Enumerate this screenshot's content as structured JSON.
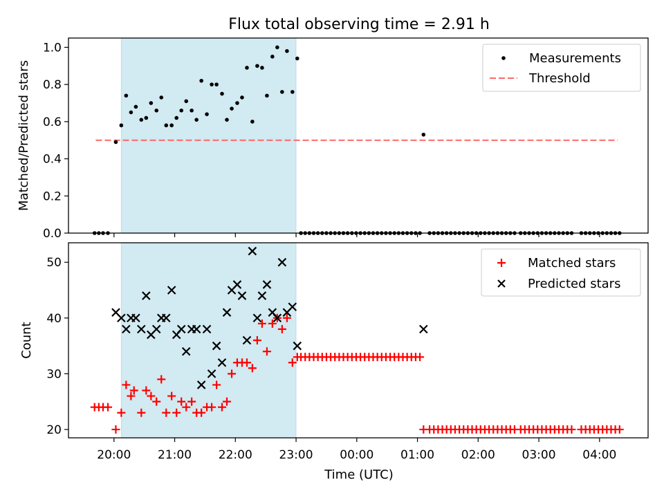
{
  "title": "Flux total observing time = 2.91 h",
  "x_tick_labels": [
    "20:00",
    "21:00",
    "22:00",
    "23:00",
    "00:00",
    "01:00",
    "02:00",
    "03:00",
    "04:00"
  ],
  "xlabel": "Time (UTC)",
  "colors": {
    "shade": "#add8e6",
    "threshold": "#ff6666",
    "measurement": "#000000",
    "matched": "#ff0000",
    "predicted": "#000000"
  },
  "chart_data": [
    {
      "type": "scatter",
      "panel": "top",
      "title": "Flux total observing time = 2.91 h",
      "ylabel": "Matched/Predicted stars",
      "x_unit": "hours since 20:00 UTC",
      "xlim": [
        -0.75,
        8.8
      ],
      "ylim": [
        0,
        1.05
      ],
      "yticks": [
        0.0,
        0.2,
        0.4,
        0.6,
        0.8,
        1.0
      ],
      "ytick_labels": [
        "0.0",
        "0.2",
        "0.4",
        "0.6",
        "0.8",
        "1.0"
      ],
      "shaded_interval": [
        0.12,
        3.0
      ],
      "threshold": {
        "name": "Threshold",
        "x": [
          -0.3,
          8.3
        ],
        "y": 0.5
      },
      "legend": {
        "position": "top-right",
        "entries": [
          "Measurements",
          "Threshold"
        ]
      },
      "series": [
        {
          "name": "Measurements",
          "points": [
            [
              -0.32,
              0
            ],
            [
              -0.25,
              0
            ],
            [
              -0.18,
              0
            ],
            [
              -0.1,
              0
            ],
            [
              0.03,
              0.49
            ],
            [
              0.12,
              0.58
            ],
            [
              0.2,
              0.74
            ],
            [
              0.28,
              0.65
            ],
            [
              0.36,
              0.68
            ],
            [
              0.45,
              0.61
            ],
            [
              0.53,
              0.62
            ],
            [
              0.61,
              0.7
            ],
            [
              0.7,
              0.66
            ],
            [
              0.78,
              0.73
            ],
            [
              0.86,
              0.58
            ],
            [
              0.95,
              0.58
            ],
            [
              1.03,
              0.62
            ],
            [
              1.11,
              0.66
            ],
            [
              1.19,
              0.71
            ],
            [
              1.28,
              0.66
            ],
            [
              1.36,
              0.61
            ],
            [
              1.44,
              0.82
            ],
            [
              1.53,
              0.64
            ],
            [
              1.61,
              0.8
            ],
            [
              1.69,
              0.8
            ],
            [
              1.78,
              0.75
            ],
            [
              1.86,
              0.61
            ],
            [
              1.94,
              0.67
            ],
            [
              2.03,
              0.7
            ],
            [
              2.11,
              0.73
            ],
            [
              2.19,
              0.89
            ],
            [
              2.28,
              0.6
            ],
            [
              2.36,
              0.9
            ],
            [
              2.44,
              0.89
            ],
            [
              2.52,
              0.74
            ],
            [
              2.61,
              0.95
            ],
            [
              2.69,
              1.0
            ],
            [
              2.77,
              0.76
            ],
            [
              2.85,
              0.98
            ],
            [
              2.94,
              0.76
            ],
            [
              3.02,
              0.94
            ],
            [
              3.08,
              0
            ],
            [
              3.15,
              0
            ],
            [
              3.22,
              0
            ],
            [
              3.29,
              0
            ],
            [
              3.36,
              0
            ],
            [
              3.43,
              0
            ],
            [
              3.5,
              0
            ],
            [
              3.57,
              0
            ],
            [
              3.64,
              0
            ],
            [
              3.71,
              0
            ],
            [
              3.78,
              0
            ],
            [
              3.85,
              0
            ],
            [
              3.92,
              0
            ],
            [
              3.99,
              0
            ],
            [
              4.06,
              0
            ],
            [
              4.13,
              0
            ],
            [
              4.2,
              0
            ],
            [
              4.27,
              0
            ],
            [
              4.34,
              0
            ],
            [
              4.41,
              0
            ],
            [
              4.48,
              0
            ],
            [
              4.55,
              0
            ],
            [
              4.62,
              0
            ],
            [
              4.69,
              0
            ],
            [
              4.76,
              0
            ],
            [
              4.83,
              0
            ],
            [
              4.9,
              0
            ],
            [
              4.97,
              0
            ],
            [
              5.04,
              0
            ],
            [
              5.1,
              0.53
            ],
            [
              5.2,
              0
            ],
            [
              5.27,
              0
            ],
            [
              5.34,
              0
            ],
            [
              5.41,
              0
            ],
            [
              5.48,
              0
            ],
            [
              5.55,
              0
            ],
            [
              5.62,
              0
            ],
            [
              5.69,
              0
            ],
            [
              5.76,
              0
            ],
            [
              5.83,
              0
            ],
            [
              5.9,
              0
            ],
            [
              5.97,
              0
            ],
            [
              6.04,
              0
            ],
            [
              6.11,
              0
            ],
            [
              6.18,
              0
            ],
            [
              6.25,
              0
            ],
            [
              6.32,
              0
            ],
            [
              6.39,
              0
            ],
            [
              6.46,
              0
            ],
            [
              6.53,
              0
            ],
            [
              6.6,
              0
            ],
            [
              6.7,
              0
            ],
            [
              6.77,
              0
            ],
            [
              6.84,
              0
            ],
            [
              6.91,
              0
            ],
            [
              6.98,
              0
            ],
            [
              7.05,
              0
            ],
            [
              7.12,
              0
            ],
            [
              7.19,
              0
            ],
            [
              7.26,
              0
            ],
            [
              7.33,
              0
            ],
            [
              7.4,
              0
            ],
            [
              7.47,
              0
            ],
            [
              7.54,
              0
            ],
            [
              7.7,
              0
            ],
            [
              7.77,
              0
            ],
            [
              7.84,
              0
            ],
            [
              7.91,
              0
            ],
            [
              7.98,
              0
            ],
            [
              8.05,
              0
            ],
            [
              8.12,
              0
            ],
            [
              8.19,
              0
            ],
            [
              8.26,
              0
            ],
            [
              8.33,
              0
            ]
          ]
        }
      ]
    },
    {
      "type": "scatter",
      "panel": "bottom",
      "ylabel": "Count",
      "x_unit": "hours since 20:00 UTC",
      "xlim": [
        -0.75,
        8.8
      ],
      "ylim": [
        18.5,
        53.5
      ],
      "yticks": [
        20,
        30,
        40,
        50
      ],
      "ytick_labels": [
        "20",
        "30",
        "40",
        "50"
      ],
      "shaded_interval": [
        0.12,
        3.0
      ],
      "legend": {
        "position": "top-right",
        "entries": [
          "Matched stars",
          "Predicted stars"
        ]
      },
      "series": [
        {
          "name": "Matched stars",
          "marker": "plus",
          "points": [
            [
              -0.32,
              24
            ],
            [
              -0.25,
              24
            ],
            [
              -0.18,
              24
            ],
            [
              -0.1,
              24
            ],
            [
              0.03,
              20
            ],
            [
              0.12,
              23
            ],
            [
              0.2,
              28
            ],
            [
              0.28,
              26
            ],
            [
              0.33,
              27
            ],
            [
              0.45,
              23
            ],
            [
              0.53,
              27
            ],
            [
              0.61,
              26
            ],
            [
              0.7,
              25
            ],
            [
              0.78,
              29
            ],
            [
              0.86,
              23
            ],
            [
              0.95,
              26
            ],
            [
              1.03,
              23
            ],
            [
              1.11,
              25
            ],
            [
              1.19,
              24
            ],
            [
              1.28,
              25
            ],
            [
              1.36,
              23
            ],
            [
              1.44,
              23
            ],
            [
              1.53,
              24
            ],
            [
              1.61,
              24
            ],
            [
              1.69,
              28
            ],
            [
              1.78,
              24
            ],
            [
              1.86,
              25
            ],
            [
              1.94,
              30
            ],
            [
              2.03,
              32
            ],
            [
              2.11,
              32
            ],
            [
              2.19,
              32
            ],
            [
              2.28,
              31
            ],
            [
              2.36,
              36
            ],
            [
              2.44,
              39
            ],
            [
              2.52,
              34
            ],
            [
              2.61,
              39
            ],
            [
              2.69,
              40
            ],
            [
              2.77,
              38
            ],
            [
              2.85,
              40
            ],
            [
              2.94,
              32
            ],
            [
              3.02,
              33
            ],
            [
              3.08,
              33
            ],
            [
              3.15,
              33
            ],
            [
              3.22,
              33
            ],
            [
              3.29,
              33
            ],
            [
              3.36,
              33
            ],
            [
              3.43,
              33
            ],
            [
              3.5,
              33
            ],
            [
              3.57,
              33
            ],
            [
              3.64,
              33
            ],
            [
              3.71,
              33
            ],
            [
              3.78,
              33
            ],
            [
              3.85,
              33
            ],
            [
              3.92,
              33
            ],
            [
              3.99,
              33
            ],
            [
              4.06,
              33
            ],
            [
              4.13,
              33
            ],
            [
              4.2,
              33
            ],
            [
              4.27,
              33
            ],
            [
              4.34,
              33
            ],
            [
              4.41,
              33
            ],
            [
              4.48,
              33
            ],
            [
              4.55,
              33
            ],
            [
              4.62,
              33
            ],
            [
              4.69,
              33
            ],
            [
              4.76,
              33
            ],
            [
              4.83,
              33
            ],
            [
              4.9,
              33
            ],
            [
              4.97,
              33
            ],
            [
              5.04,
              33
            ],
            [
              5.1,
              20
            ],
            [
              5.2,
              20
            ],
            [
              5.27,
              20
            ],
            [
              5.34,
              20
            ],
            [
              5.41,
              20
            ],
            [
              5.48,
              20
            ],
            [
              5.55,
              20
            ],
            [
              5.62,
              20
            ],
            [
              5.69,
              20
            ],
            [
              5.76,
              20
            ],
            [
              5.83,
              20
            ],
            [
              5.9,
              20
            ],
            [
              5.97,
              20
            ],
            [
              6.04,
              20
            ],
            [
              6.11,
              20
            ],
            [
              6.18,
              20
            ],
            [
              6.25,
              20
            ],
            [
              6.32,
              20
            ],
            [
              6.39,
              20
            ],
            [
              6.46,
              20
            ],
            [
              6.53,
              20
            ],
            [
              6.6,
              20
            ],
            [
              6.7,
              20
            ],
            [
              6.77,
              20
            ],
            [
              6.84,
              20
            ],
            [
              6.91,
              20
            ],
            [
              6.98,
              20
            ],
            [
              7.05,
              20
            ],
            [
              7.12,
              20
            ],
            [
              7.19,
              20
            ],
            [
              7.26,
              20
            ],
            [
              7.33,
              20
            ],
            [
              7.4,
              20
            ],
            [
              7.47,
              20
            ],
            [
              7.54,
              20
            ],
            [
              7.7,
              20
            ],
            [
              7.77,
              20
            ],
            [
              7.84,
              20
            ],
            [
              7.91,
              20
            ],
            [
              7.98,
              20
            ],
            [
              8.05,
              20
            ],
            [
              8.12,
              20
            ],
            [
              8.19,
              20
            ],
            [
              8.26,
              20
            ],
            [
              8.33,
              20
            ]
          ]
        },
        {
          "name": "Predicted stars",
          "marker": "x",
          "points": [
            [
              0.03,
              41
            ],
            [
              0.12,
              40
            ],
            [
              0.2,
              38
            ],
            [
              0.28,
              40
            ],
            [
              0.36,
              40
            ],
            [
              0.45,
              38
            ],
            [
              0.53,
              44
            ],
            [
              0.61,
              37
            ],
            [
              0.7,
              38
            ],
            [
              0.78,
              40
            ],
            [
              0.86,
              40
            ],
            [
              0.95,
              45
            ],
            [
              1.03,
              37
            ],
            [
              1.11,
              38
            ],
            [
              1.19,
              34
            ],
            [
              1.28,
              38
            ],
            [
              1.36,
              38
            ],
            [
              1.44,
              28
            ],
            [
              1.53,
              38
            ],
            [
              1.61,
              30
            ],
            [
              1.69,
              35
            ],
            [
              1.78,
              32
            ],
            [
              1.86,
              41
            ],
            [
              1.94,
              45
            ],
            [
              2.03,
              46
            ],
            [
              2.11,
              44
            ],
            [
              2.19,
              36
            ],
            [
              2.28,
              52
            ],
            [
              2.36,
              40
            ],
            [
              2.44,
              44
            ],
            [
              2.52,
              46
            ],
            [
              2.61,
              41
            ],
            [
              2.69,
              40
            ],
            [
              2.77,
              50
            ],
            [
              2.85,
              41
            ],
            [
              2.94,
              42
            ],
            [
              3.02,
              35
            ],
            [
              5.1,
              38
            ]
          ]
        }
      ]
    }
  ]
}
